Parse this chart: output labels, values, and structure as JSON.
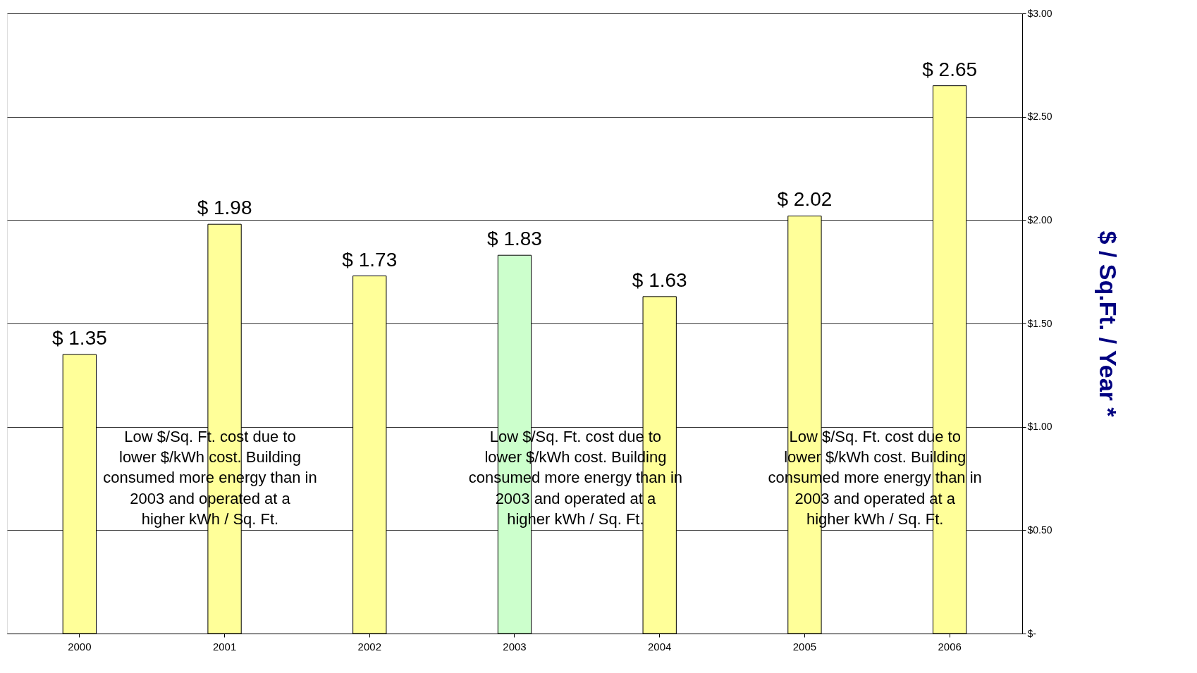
{
  "chart_data": {
    "type": "bar",
    "ylabel": "$ / Sq.Ft. / Year *",
    "categories": [
      "2000",
      "2001",
      "2002",
      "2003",
      "2004",
      "2005",
      "2006"
    ],
    "values": [
      1.35,
      1.98,
      1.73,
      1.83,
      1.63,
      2.02,
      2.65
    ],
    "colors": [
      "#ffff99",
      "#ffff99",
      "#ffff99",
      "#ccffcc",
      "#ffff99",
      "#ffff99",
      "#ffff99"
    ],
    "value_labels": [
      "$ 1.35",
      "$ 1.98",
      "$ 1.73",
      "$ 1.83",
      "$ 1.63",
      "$ 2.02",
      "$ 2.65"
    ],
    "ylim": [
      0,
      3
    ],
    "yticks": [
      {
        "value": 0,
        "label": "$-"
      },
      {
        "value": 0.5,
        "label": "$0.50"
      },
      {
        "value": 1,
        "label": "$1.00"
      },
      {
        "value": 1.5,
        "label": "$1.50"
      },
      {
        "value": 2,
        "label": "$2.00"
      },
      {
        "value": 2.5,
        "label": "$2.50"
      },
      {
        "value": 3,
        "label": "$3.00"
      }
    ],
    "grid": "y",
    "annotations": [
      "Low $/Sq. Ft. cost due to lower $/kWh cost. Building consumed more energy than in 2003 and operated at a higher kWh / Sq. Ft.",
      "Low $/Sq. Ft. cost due to lower $/kWh cost. Building consumed more energy than in 2003 and operated at a higher kWh / Sq. Ft.",
      "Low $/Sq. Ft. cost due to lower $/kWh cost. Building consumed more energy than in 2003 and operated at a higher kWh / Sq. Ft."
    ]
  }
}
